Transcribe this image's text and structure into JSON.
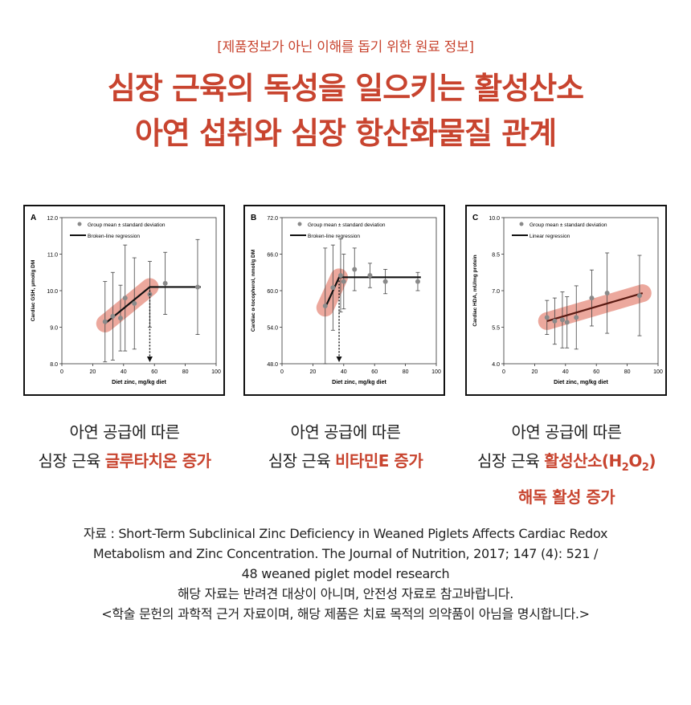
{
  "header": {
    "notice": "[제품정보가 아닌 이해를 돕기 위한 원료 정보]",
    "title_line1": "심장 근육의 독성을 일으키는 활성산소",
    "title_line2": "아연 섭취와 심장 항산화물질 관계"
  },
  "colors": {
    "accent": "#c8442f",
    "band": "#e9998c",
    "line": "#5a1a12",
    "point": "#8a8a8a"
  },
  "chart_data": [
    {
      "type": "scatter",
      "panel_label": "A",
      "xlabel": "Diet zinc, mg/kg diet",
      "ylabel": "Cardiac GSH, μmol/g DM",
      "xlim": [
        0,
        100
      ],
      "ylim": [
        8.0,
        12.0
      ],
      "x_ticks": [
        0,
        20,
        40,
        60,
        80,
        100
      ],
      "y_ticks": [
        "8.0",
        "9.0",
        "10.0",
        "11.0",
        "12.0"
      ],
      "legend": [
        "Group mean ± standard deviation",
        "Broken-line regression"
      ],
      "x": [
        28,
        33,
        38,
        41,
        47,
        57,
        67,
        88
      ],
      "y": [
        9.15,
        9.3,
        9.25,
        9.8,
        9.65,
        9.9,
        10.2,
        10.1
      ],
      "sd": [
        1.1,
        1.2,
        0.9,
        1.45,
        1.25,
        0.9,
        0.85,
        1.3
      ],
      "regression": [
        [
          28,
          9.1
        ],
        [
          57,
          10.1
        ],
        [
          90,
          10.1
        ]
      ],
      "breakpoint": 57
    },
    {
      "type": "scatter",
      "panel_label": "B",
      "xlabel": "Diet zinc, mg/kg diet",
      "ylabel": "Cardiac α-tocopherol, nmol/g DM",
      "xlim": [
        0,
        100
      ],
      "ylim": [
        48.0,
        72.0
      ],
      "x_ticks": [
        0,
        20,
        40,
        60,
        80,
        100
      ],
      "y_ticks": [
        "48.0",
        "54.0",
        "60.0",
        "66.0",
        "72.0"
      ],
      "legend": [
        "Group mean ± standard deviation",
        "Broken-line regression"
      ],
      "x": [
        28,
        33,
        38,
        40,
        47,
        57,
        67,
        88
      ],
      "y": [
        57.5,
        60.5,
        62.5,
        61.5,
        63.5,
        62.5,
        61.5,
        61.5
      ],
      "sd": [
        9.5,
        7.0,
        6.0,
        4.5,
        3.5,
        2.0,
        2.0,
        1.5
      ],
      "regression": [
        [
          28,
          57.2
        ],
        [
          37,
          62.2
        ],
        [
          90,
          62.2
        ]
      ],
      "breakpoint": 37
    },
    {
      "type": "scatter",
      "panel_label": "C",
      "xlabel": "Diet zinc, mg/kg diet",
      "ylabel": "Cardiac HDA, mU/mg protein",
      "xlim": [
        0,
        100
      ],
      "ylim": [
        4.0,
        10.0
      ],
      "x_ticks": [
        0,
        20,
        40,
        60,
        80,
        100
      ],
      "y_ticks": [
        "4.0",
        "5.5",
        "7.0",
        "8.5",
        "10.0"
      ],
      "legend": [
        "Group mean ± standard deviation",
        "Linear regression"
      ],
      "x": [
        28,
        33,
        38,
        41,
        47,
        57,
        67,
        88
      ],
      "y": [
        5.9,
        5.75,
        5.8,
        5.7,
        5.9,
        6.7,
        6.9,
        6.8
      ],
      "sd": [
        0.7,
        0.95,
        1.15,
        1.05,
        1.3,
        1.15,
        1.65,
        1.65
      ],
      "regression": [
        [
          28,
          5.75
        ],
        [
          90,
          6.9
        ]
      ]
    }
  ],
  "captions": [
    {
      "line1": "아연 공급에 따른",
      "plain": "심장 근육 ",
      "highlight": "글루타치온 증가"
    },
    {
      "line1": "아연 공급에 따른",
      "plain": "심장 근육 ",
      "highlight": "비타민E 증가"
    },
    {
      "line1": "아연 공급에 따른",
      "plain": "심장 근육 ",
      "highlight_a": "활성산소(H",
      "sub1": "2",
      "highlight_b": "O",
      "sub2": "2",
      "highlight_c": ")",
      "line3": "해독 활성 증가"
    }
  ],
  "source": {
    "line1": "자료 : Short-Term Subclinical Zinc Deficiency in Weaned Piglets Affects Cardiac Redox",
    "line2": "Metabolism and Zinc Concentration. The Journal of Nutrition, 2017; 147 (4): 521 /",
    "line3": "48 weaned piglet model research",
    "line4": "해당 자료는 반려견 대상이 아니며, 안전성 자료로 참고바랍니다.",
    "line5": "<학술 문헌의 과학적 근거 자료이며, 해당 제품은 치료 목적의 의약품이 아님을 명시합니다.>"
  }
}
